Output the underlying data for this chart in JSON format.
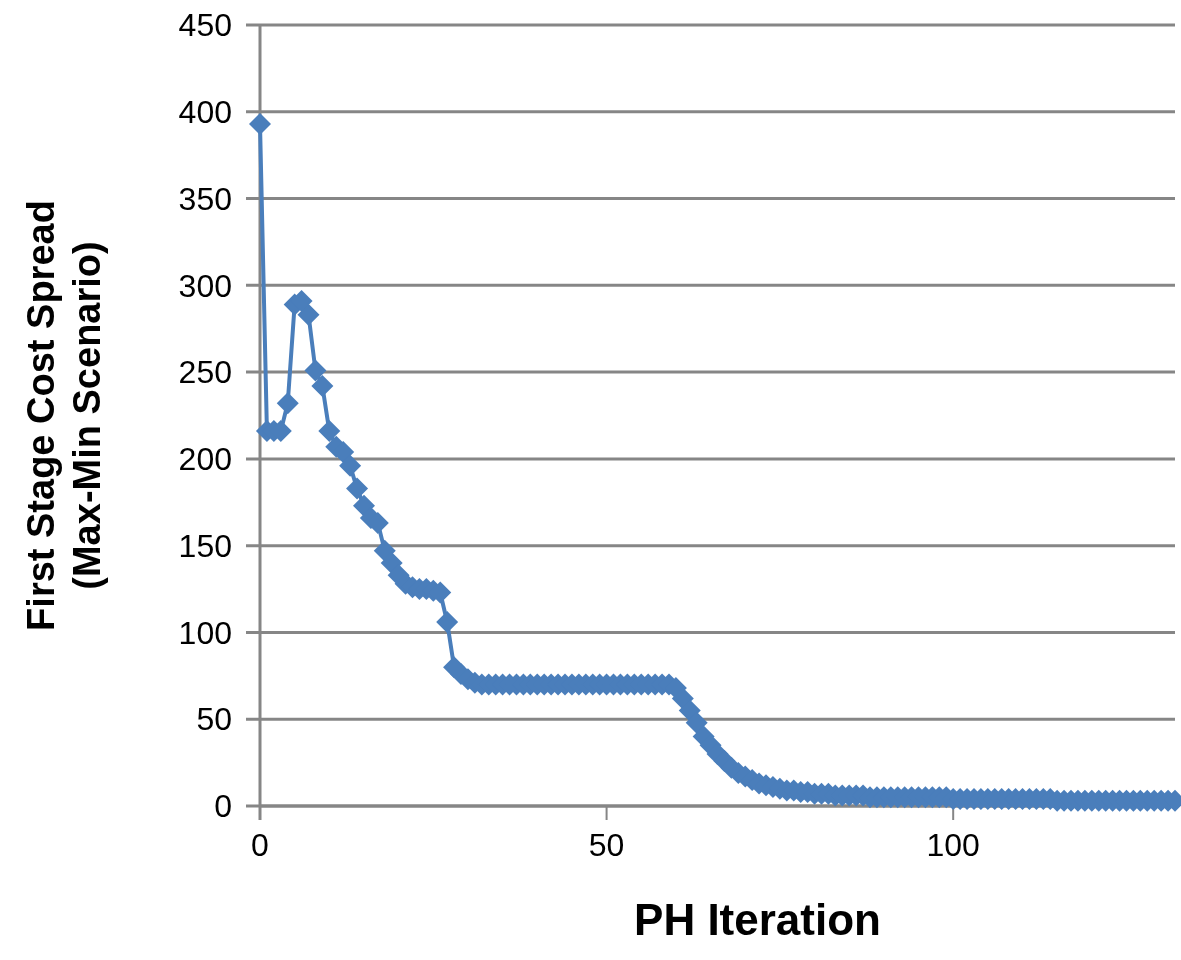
{
  "chart_data": {
    "type": "line",
    "xlabel": "PH Iteration",
    "ylabel": "First Stage Cost Spread\n(Max-Min Scenario)",
    "xlim": [
      0,
      132
    ],
    "xticks": [
      0,
      50,
      100
    ],
    "ylim": [
      0,
      450
    ],
    "yticks": [
      0,
      50,
      100,
      150,
      200,
      250,
      300,
      350,
      400,
      450
    ],
    "grid": "y",
    "marker": "diamond",
    "series": [
      {
        "color": "#4a7ebb",
        "x": [
          0,
          1,
          2,
          3,
          4,
          5,
          6,
          7,
          8,
          9,
          10,
          11,
          12,
          13,
          14,
          15,
          16,
          17,
          18,
          19,
          20,
          21,
          22,
          23,
          24,
          25,
          26,
          27,
          28,
          29,
          30,
          31,
          32,
          33,
          34,
          35,
          36,
          37,
          38,
          39,
          40,
          41,
          42,
          43,
          44,
          45,
          46,
          47,
          48,
          49,
          50,
          51,
          52,
          53,
          54,
          55,
          56,
          57,
          58,
          59,
          60,
          61,
          62,
          63,
          64,
          65,
          66,
          67,
          68,
          69,
          70,
          71,
          72,
          73,
          74,
          75,
          76,
          77,
          78,
          79,
          80,
          81,
          82,
          83,
          84,
          85,
          86,
          87,
          88,
          89,
          90,
          91,
          92,
          93,
          94,
          95,
          96,
          97,
          98,
          99,
          100,
          101,
          102,
          103,
          104,
          105,
          106,
          107,
          108,
          109,
          110,
          111,
          112,
          113,
          114,
          115,
          116,
          117,
          118,
          119,
          120,
          121,
          122,
          123,
          124,
          125,
          126,
          127,
          128,
          129,
          130,
          131,
          132
        ],
        "values": [
          393,
          216,
          216,
          216,
          232,
          289,
          291,
          283,
          251,
          242,
          216,
          207,
          204,
          196,
          183,
          173,
          166,
          163,
          147,
          140,
          133,
          128,
          126,
          125,
          125,
          124,
          123,
          106,
          80,
          76,
          73,
          71,
          70,
          70,
          70,
          70,
          70,
          70,
          70,
          70,
          70,
          70,
          70,
          70,
          70,
          70,
          70,
          70,
          70,
          70,
          70,
          70,
          70,
          70,
          70,
          70,
          70,
          70,
          70,
          70,
          68,
          62,
          55,
          48,
          40,
          35,
          30,
          26,
          22,
          19,
          17,
          15,
          13,
          12,
          11,
          10,
          9,
          9,
          8,
          8,
          7,
          7,
          7,
          6,
          6,
          6,
          6,
          6,
          5,
          5,
          5,
          5,
          5,
          5,
          5,
          5,
          5,
          5,
          5,
          5,
          4,
          4,
          4,
          4,
          4,
          4,
          4,
          4,
          4,
          4,
          4,
          4,
          4,
          4,
          4,
          3,
          3,
          3,
          3,
          3,
          3,
          3,
          3,
          3,
          3,
          3,
          3,
          3,
          3,
          3,
          3,
          3,
          3
        ]
      }
    ]
  }
}
